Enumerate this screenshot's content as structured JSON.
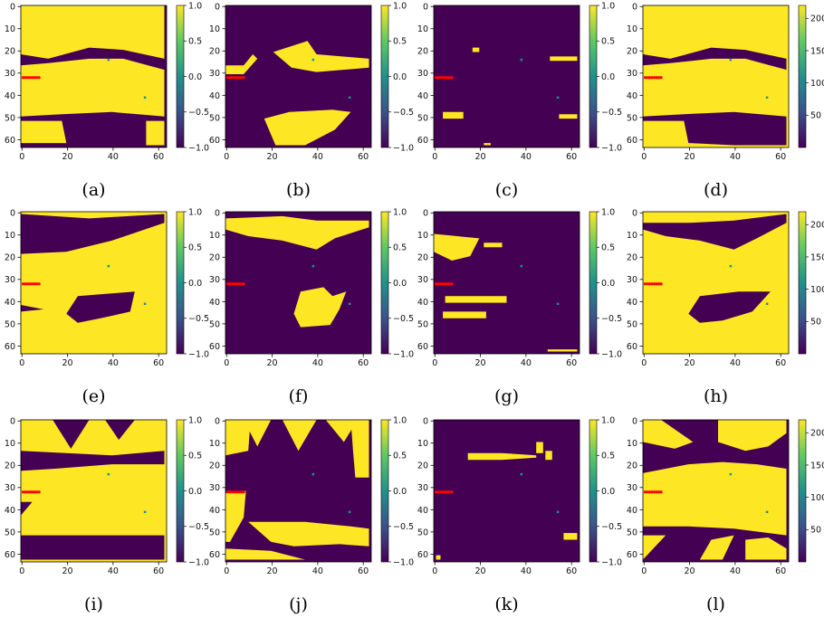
{
  "figure": {
    "colormap": "viridis",
    "cmap_colors": {
      "low": "#440154",
      "mid": "#21918c",
      "high": "#fde725"
    },
    "marker_color": "#ff0000"
  },
  "chart_data": [
    {
      "label": "(a)",
      "type": "heatmap",
      "xlim": [
        0,
        63
      ],
      "ylim": [
        63,
        0
      ],
      "xticks": [
        "0",
        "20",
        "40",
        "60"
      ],
      "yticks": [
        "0",
        "10",
        "20",
        "30",
        "40",
        "50",
        "60"
      ],
      "colorbar": {
        "range": [
          -1.0,
          1.0
        ],
        "ticks": [
          "1.0",
          "0.5",
          "0.0",
          "−0.5",
          "−1.0"
        ]
      }
    },
    {
      "label": "(b)",
      "type": "heatmap",
      "xlim": [
        0,
        63
      ],
      "ylim": [
        63,
        0
      ],
      "xticks": [
        "0",
        "20",
        "40",
        "60"
      ],
      "yticks": [
        "0",
        "10",
        "20",
        "30",
        "40",
        "50",
        "60"
      ],
      "colorbar": {
        "range": [
          -1.0,
          1.0
        ],
        "ticks": [
          "1.0",
          "0.5",
          "0.0",
          "−0.5",
          "−1.0"
        ]
      }
    },
    {
      "label": "(c)",
      "type": "heatmap",
      "xlim": [
        0,
        63
      ],
      "ylim": [
        63,
        0
      ],
      "xticks": [
        "0",
        "20",
        "40",
        "60"
      ],
      "yticks": [
        "0",
        "10",
        "20",
        "30",
        "40",
        "50",
        "60"
      ],
      "colorbar": {
        "range": [
          -1.0,
          1.0
        ],
        "ticks": [
          "1.0",
          "0.5",
          "0.0",
          "−0.5",
          "−1.0"
        ]
      }
    },
    {
      "label": "(d)",
      "type": "heatmap",
      "xlim": [
        0,
        63
      ],
      "ylim": [
        63,
        0
      ],
      "xticks": [
        "0",
        "20",
        "40",
        "60"
      ],
      "yticks": [
        "0",
        "10",
        "20",
        "30",
        "40",
        "50",
        "60"
      ],
      "colorbar": {
        "range": [
          0,
          220
        ],
        "ticks": [
          "200",
          "150",
          "100",
          "50"
        ]
      }
    },
    {
      "label": "(e)",
      "type": "heatmap",
      "xlim": [
        0,
        63
      ],
      "ylim": [
        63,
        0
      ],
      "xticks": [
        "0",
        "20",
        "40",
        "60"
      ],
      "yticks": [
        "0",
        "10",
        "20",
        "30",
        "40",
        "50",
        "60"
      ],
      "colorbar": {
        "range": [
          -1.0,
          1.0
        ],
        "ticks": [
          "1.0",
          "0.5",
          "0.0",
          "−0.5",
          "−1.0"
        ]
      }
    },
    {
      "label": "(f)",
      "type": "heatmap",
      "xlim": [
        0,
        63
      ],
      "ylim": [
        63,
        0
      ],
      "xticks": [
        "0",
        "20",
        "40",
        "60"
      ],
      "yticks": [
        "0",
        "10",
        "20",
        "30",
        "40",
        "50",
        "60"
      ],
      "colorbar": {
        "range": [
          -1.0,
          1.0
        ],
        "ticks": [
          "1.0",
          "0.5",
          "0.0",
          "−0.5",
          "−1.0"
        ]
      }
    },
    {
      "label": "(g)",
      "type": "heatmap",
      "xlim": [
        0,
        63
      ],
      "ylim": [
        63,
        0
      ],
      "xticks": [
        "0",
        "20",
        "40",
        "60"
      ],
      "yticks": [
        "0",
        "10",
        "20",
        "30",
        "40",
        "50",
        "60"
      ],
      "colorbar": {
        "range": [
          -1.0,
          1.0
        ],
        "ticks": [
          "1.0",
          "0.5",
          "0.0",
          "−0.5",
          "−1.0"
        ]
      }
    },
    {
      "label": "(h)",
      "type": "heatmap",
      "xlim": [
        0,
        63
      ],
      "ylim": [
        63,
        0
      ],
      "xticks": [
        "0",
        "20",
        "40",
        "60"
      ],
      "yticks": [
        "0",
        "10",
        "20",
        "30",
        "40",
        "50",
        "60"
      ],
      "colorbar": {
        "range": [
          0,
          220
        ],
        "ticks": [
          "200",
          "150",
          "100",
          "50"
        ]
      }
    },
    {
      "label": "(i)",
      "type": "heatmap",
      "xlim": [
        0,
        63
      ],
      "ylim": [
        63,
        0
      ],
      "xticks": [
        "0",
        "20",
        "40",
        "60"
      ],
      "yticks": [
        "0",
        "10",
        "20",
        "30",
        "40",
        "50",
        "60"
      ],
      "colorbar": {
        "range": [
          -1.0,
          1.0
        ],
        "ticks": [
          "1.0",
          "0.5",
          "0.0",
          "−0.5",
          "−1.0"
        ]
      }
    },
    {
      "label": "(j)",
      "type": "heatmap",
      "xlim": [
        0,
        63
      ],
      "ylim": [
        63,
        0
      ],
      "xticks": [
        "0",
        "20",
        "40",
        "60"
      ],
      "yticks": [
        "0",
        "10",
        "20",
        "30",
        "40",
        "50",
        "60"
      ],
      "colorbar": {
        "range": [
          -1.0,
          1.0
        ],
        "ticks": [
          "1.0",
          "0.5",
          "0.0",
          "−0.5",
          "−1.0"
        ]
      }
    },
    {
      "label": "(k)",
      "type": "heatmap",
      "xlim": [
        0,
        63
      ],
      "ylim": [
        63,
        0
      ],
      "xticks": [
        "0",
        "20",
        "40",
        "60"
      ],
      "yticks": [
        "0",
        "10",
        "20",
        "30",
        "40",
        "50",
        "60"
      ],
      "colorbar": {
        "range": [
          -1.0,
          1.0
        ],
        "ticks": [
          "1.0",
          "0.5",
          "0.0",
          "−0.5",
          "−1.0"
        ]
      }
    },
    {
      "label": "(l)",
      "type": "heatmap",
      "xlim": [
        0,
        63
      ],
      "ylim": [
        63,
        0
      ],
      "xticks": [
        "0",
        "20",
        "40",
        "60"
      ],
      "yticks": [
        "0",
        "10",
        "20",
        "30",
        "40",
        "50",
        "60"
      ],
      "colorbar": {
        "range": [
          0,
          220
        ],
        "ticks": [
          "200",
          "150",
          "100",
          "50"
        ]
      }
    }
  ]
}
